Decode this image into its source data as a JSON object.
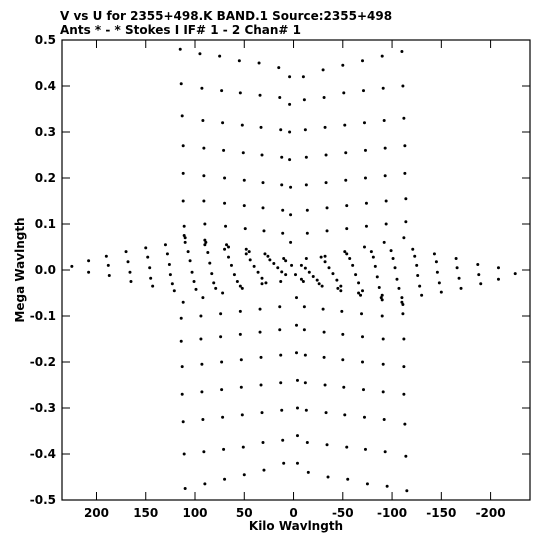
{
  "chart_data": {
    "type": "scatter",
    "title_line1": "V vs U for 2355+498.K BAND.1   Source:2355+498",
    "title_line2": "Ants * - *    Stokes I  IF# 1 - 2  Chan# 1",
    "xlabel": "Kilo Wavlngth",
    "ylabel": "Mega Wavlngth",
    "x_units": "kilo-wavelength",
    "y_units": "mega-wavelength",
    "x_axis_inverted": true,
    "xlim": [
      235,
      -240
    ],
    "ylim": [
      -0.5,
      0.5
    ],
    "xticks": [
      200,
      150,
      100,
      50,
      0,
      -50,
      -100,
      -150,
      -200
    ],
    "xtick_labels": [
      "200",
      "150",
      "100",
      "50",
      "0",
      "-50",
      "-100",
      "-150",
      "-200"
    ],
    "yticks": [
      0.5,
      0.4,
      0.3,
      0.2,
      0.1,
      0.0,
      -0.1,
      -0.2,
      -0.3,
      -0.4,
      -0.5
    ],
    "ytick_labels": [
      "0.5",
      "0.4",
      "0.3",
      "0.2",
      "0.1",
      "0.0",
      "-0.1",
      "-0.2",
      "-0.3",
      "-0.4",
      "-0.5"
    ],
    "grid": false,
    "marker_color": "#000000",
    "uv_tracks": [
      {
        "points": [
          [
            115,
            0.48
          ],
          [
            114,
            0.405
          ],
          [
            113,
            0.335
          ],
          [
            112,
            0.27
          ],
          [
            112,
            0.21
          ],
          [
            112,
            0.15
          ],
          [
            111,
            0.095
          ],
          [
            111,
            0.075
          ],
          [
            110,
            0.07
          ]
        ]
      },
      {
        "points": [
          [
            95,
            0.47
          ],
          [
            93,
            0.395
          ],
          [
            92,
            0.325
          ],
          [
            91,
            0.265
          ],
          [
            91,
            0.205
          ],
          [
            91,
            0.15
          ],
          [
            90,
            0.1
          ],
          [
            90,
            0.065
          ],
          [
            89,
            0.06
          ]
        ]
      },
      {
        "points": [
          [
            75,
            0.465
          ],
          [
            73,
            0.39
          ],
          [
            72,
            0.32
          ],
          [
            71,
            0.26
          ],
          [
            70,
            0.2
          ],
          [
            70,
            0.145
          ],
          [
            69,
            0.095
          ],
          [
            68,
            0.055
          ],
          [
            66,
            0.05
          ]
        ]
      },
      {
        "points": [
          [
            55,
            0.455
          ],
          [
            54,
            0.385
          ],
          [
            52,
            0.315
          ],
          [
            51,
            0.255
          ],
          [
            50,
            0.195
          ],
          [
            50,
            0.14
          ],
          [
            49,
            0.09
          ],
          [
            48,
            0.045
          ],
          [
            45,
            0.04
          ]
        ]
      },
      {
        "points": [
          [
            35,
            0.45
          ],
          [
            34,
            0.38
          ],
          [
            33,
            0.31
          ],
          [
            32,
            0.25
          ],
          [
            31,
            0.19
          ],
          [
            31,
            0.135
          ],
          [
            30,
            0.085
          ],
          [
            29,
            0.035
          ],
          [
            26,
            0.03
          ]
        ]
      },
      {
        "points": [
          [
            15,
            0.44
          ],
          [
            14,
            0.375
          ],
          [
            13,
            0.305
          ],
          [
            12,
            0.245
          ],
          [
            12,
            0.185
          ],
          [
            11,
            0.13
          ],
          [
            11,
            0.08
          ],
          [
            10,
            0.025
          ],
          [
            8,
            0.02
          ]
        ]
      },
      {
        "points": [
          [
            4,
            0.42
          ],
          [
            4,
            0.36
          ],
          [
            4,
            0.3
          ],
          [
            4,
            0.24
          ],
          [
            3,
            0.18
          ],
          [
            3,
            0.12
          ],
          [
            3,
            0.06
          ],
          [
            2,
            0.01
          ]
        ]
      },
      {
        "points": [
          [
            -10,
            0.42
          ],
          [
            -11,
            0.37
          ],
          [
            -12,
            0.305
          ],
          [
            -13,
            0.245
          ],
          [
            -13,
            0.185
          ],
          [
            -14,
            0.13
          ],
          [
            -14,
            0.08
          ],
          [
            -13,
            0.025
          ]
        ]
      },
      {
        "points": [
          [
            -30,
            0.435
          ],
          [
            -31,
            0.375
          ],
          [
            -32,
            0.31
          ],
          [
            -33,
            0.25
          ],
          [
            -33,
            0.19
          ],
          [
            -34,
            0.135
          ],
          [
            -34,
            0.085
          ],
          [
            -32,
            0.03
          ]
        ]
      },
      {
        "points": [
          [
            -50,
            0.445
          ],
          [
            -51,
            0.385
          ],
          [
            -52,
            0.315
          ],
          [
            -53,
            0.255
          ],
          [
            -53,
            0.195
          ],
          [
            -54,
            0.14
          ],
          [
            -54,
            0.09
          ],
          [
            -52,
            0.04
          ]
        ]
      },
      {
        "points": [
          [
            -70,
            0.455
          ],
          [
            -71,
            0.39
          ],
          [
            -72,
            0.32
          ],
          [
            -73,
            0.26
          ],
          [
            -73,
            0.2
          ],
          [
            -74,
            0.145
          ],
          [
            -74,
            0.095
          ],
          [
            -72,
            0.05
          ]
        ]
      },
      {
        "points": [
          [
            -90,
            0.465
          ],
          [
            -91,
            0.395
          ],
          [
            -92,
            0.325
          ],
          [
            -93,
            0.265
          ],
          [
            -93,
            0.205
          ],
          [
            -94,
            0.15
          ],
          [
            -94,
            0.1
          ],
          [
            -92,
            0.06
          ]
        ]
      },
      {
        "points": [
          [
            -110,
            0.475
          ],
          [
            -111,
            0.4
          ],
          [
            -112,
            0.33
          ],
          [
            -113,
            0.27
          ],
          [
            -113,
            0.21
          ],
          [
            -114,
            0.155
          ],
          [
            -114,
            0.105
          ],
          [
            -112,
            0.07
          ]
        ]
      }
    ],
    "horizontal_band": [
      [
        225,
        0.008
      ],
      [
        208,
        0.02
      ],
      [
        208,
        -0.005
      ],
      [
        190,
        0.03
      ],
      [
        188,
        0.01
      ],
      [
        187,
        -0.012
      ],
      [
        170,
        0.04
      ],
      [
        168,
        0.018
      ],
      [
        166,
        -0.005
      ],
      [
        165,
        -0.025
      ],
      [
        150,
        0.048
      ],
      [
        148,
        0.028
      ],
      [
        146,
        0.005
      ],
      [
        145,
        -0.018
      ],
      [
        143,
        -0.035
      ],
      [
        130,
        0.055
      ],
      [
        128,
        0.035
      ],
      [
        126,
        0.012
      ],
      [
        125,
        -0.01
      ],
      [
        123,
        -0.03
      ],
      [
        121,
        -0.045
      ],
      [
        110,
        0.06
      ],
      [
        107,
        0.04
      ],
      [
        105,
        0.02
      ],
      [
        103,
        -0.005
      ],
      [
        101,
        -0.025
      ],
      [
        99,
        -0.042
      ],
      [
        90,
        0.055
      ],
      [
        87,
        0.038
      ],
      [
        85,
        0.015
      ],
      [
        83,
        -0.008
      ],
      [
        81,
        -0.028
      ],
      [
        79,
        -0.04
      ],
      [
        70,
        0.045
      ],
      [
        66,
        0.028
      ],
      [
        63,
        0.01
      ],
      [
        60,
        -0.01
      ],
      [
        57,
        -0.025
      ],
      [
        54,
        -0.035
      ],
      [
        48,
        0.035
      ],
      [
        44,
        0.022
      ],
      [
        40,
        0.008
      ],
      [
        36,
        -0.005
      ],
      [
        32,
        -0.018
      ],
      [
        28,
        -0.028
      ],
      [
        24,
        0.022
      ],
      [
        20,
        0.014
      ],
      [
        16,
        0.005
      ],
      [
        12,
        -0.004
      ],
      [
        8,
        -0.01
      ],
      [
        -8,
        0.01
      ],
      [
        -12,
        0.004
      ],
      [
        -16,
        -0.005
      ],
      [
        -20,
        -0.014
      ],
      [
        -24,
        -0.022
      ],
      [
        -28,
        0.028
      ],
      [
        -32,
        0.018
      ],
      [
        -36,
        0.005
      ],
      [
        -40,
        -0.008
      ],
      [
        -44,
        -0.022
      ],
      [
        -48,
        -0.035
      ],
      [
        -54,
        0.035
      ],
      [
        -57,
        0.025
      ],
      [
        -60,
        0.01
      ],
      [
        -63,
        -0.01
      ],
      [
        -66,
        -0.028
      ],
      [
        -70,
        -0.045
      ],
      [
        -79,
        0.04
      ],
      [
        -81,
        0.028
      ],
      [
        -83,
        0.008
      ],
      [
        -85,
        -0.015
      ],
      [
        -87,
        -0.038
      ],
      [
        -90,
        -0.055
      ],
      [
        -99,
        0.042
      ],
      [
        -101,
        0.025
      ],
      [
        -103,
        0.005
      ],
      [
        -105,
        -0.02
      ],
      [
        -107,
        -0.04
      ],
      [
        -110,
        -0.06
      ],
      [
        -121,
        0.045
      ],
      [
        -123,
        0.03
      ],
      [
        -125,
        0.01
      ],
      [
        -126,
        -0.012
      ],
      [
        -128,
        -0.035
      ],
      [
        -130,
        -0.055
      ],
      [
        -143,
        0.035
      ],
      [
        -145,
        0.018
      ],
      [
        -146,
        -0.005
      ],
      [
        -148,
        -0.028
      ],
      [
        -150,
        -0.048
      ],
      [
        -165,
        0.025
      ],
      [
        -166,
        0.005
      ],
      [
        -168,
        -0.018
      ],
      [
        -170,
        -0.04
      ],
      [
        -187,
        0.012
      ],
      [
        -188,
        -0.01
      ],
      [
        -190,
        -0.03
      ],
      [
        -208,
        0.005
      ],
      [
        -208,
        -0.02
      ],
      [
        -225,
        -0.008
      ]
    ]
  }
}
